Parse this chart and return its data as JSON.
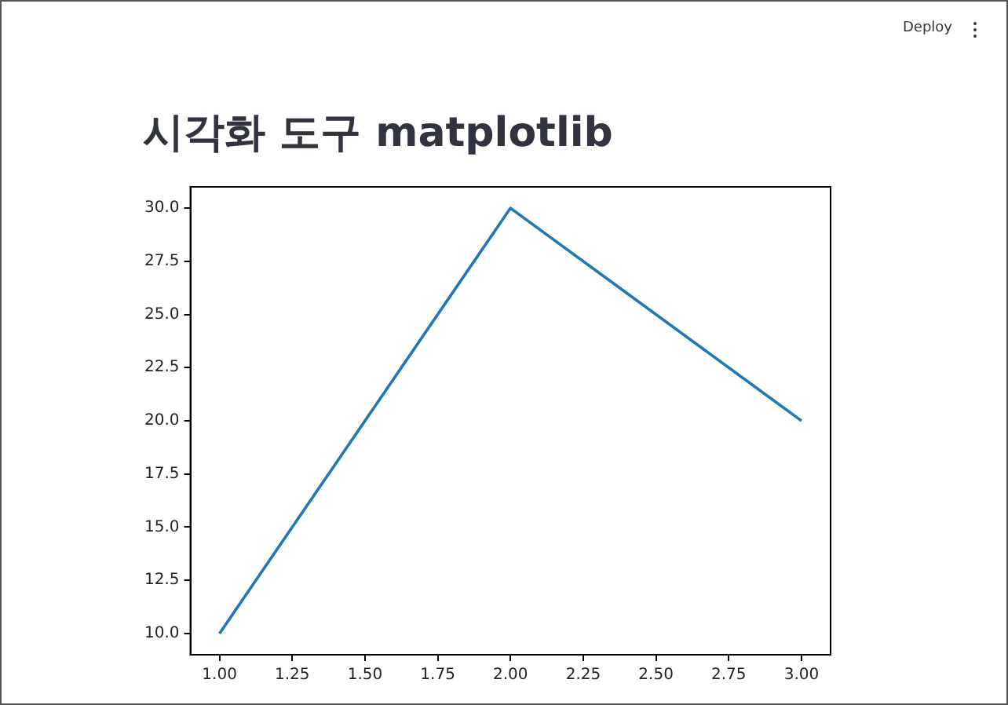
{
  "chart_data": {
    "type": "line",
    "title": "시각화 도구 matplotlib",
    "annotations": [
      "Deploy"
    ],
    "x": [
      1,
      2,
      3
    ],
    "series": [
      {
        "color": "#1f77b4",
        "values": [
          10,
          30,
          20
        ]
      }
    ],
    "xlim": [
      0.9,
      3.1
    ],
    "xticks": [
      {
        "value": 1,
        "label": "1.00"
      },
      {
        "value": 1.25,
        "label": "1.25"
      },
      {
        "value": 1.5,
        "label": "1.50"
      },
      {
        "value": 1.75,
        "label": "1.75"
      },
      {
        "value": 2,
        "label": "2.00"
      },
      {
        "value": 2.25,
        "label": "2.25"
      },
      {
        "value": 2.5,
        "label": "2.50"
      },
      {
        "value": 2.75,
        "label": "2.75"
      },
      {
        "value": 3,
        "label": "3.00"
      }
    ],
    "ylim": [
      9,
      31
    ],
    "yticks": [
      {
        "value": 10,
        "label": "10.0"
      },
      {
        "value": 12.5,
        "label": "12.5"
      },
      {
        "value": 15,
        "label": "15.0"
      },
      {
        "value": 17.5,
        "label": "17.5"
      },
      {
        "value": 20,
        "label": "20.0"
      },
      {
        "value": 22.5,
        "label": "22.5"
      },
      {
        "value": 25,
        "label": "25.0"
      },
      {
        "value": 27.5,
        "label": "27.5"
      },
      {
        "value": 30,
        "label": "30.0"
      }
    ],
    "grid": false,
    "legend": false,
    "marker": "none",
    "line_style": "solid"
  }
}
